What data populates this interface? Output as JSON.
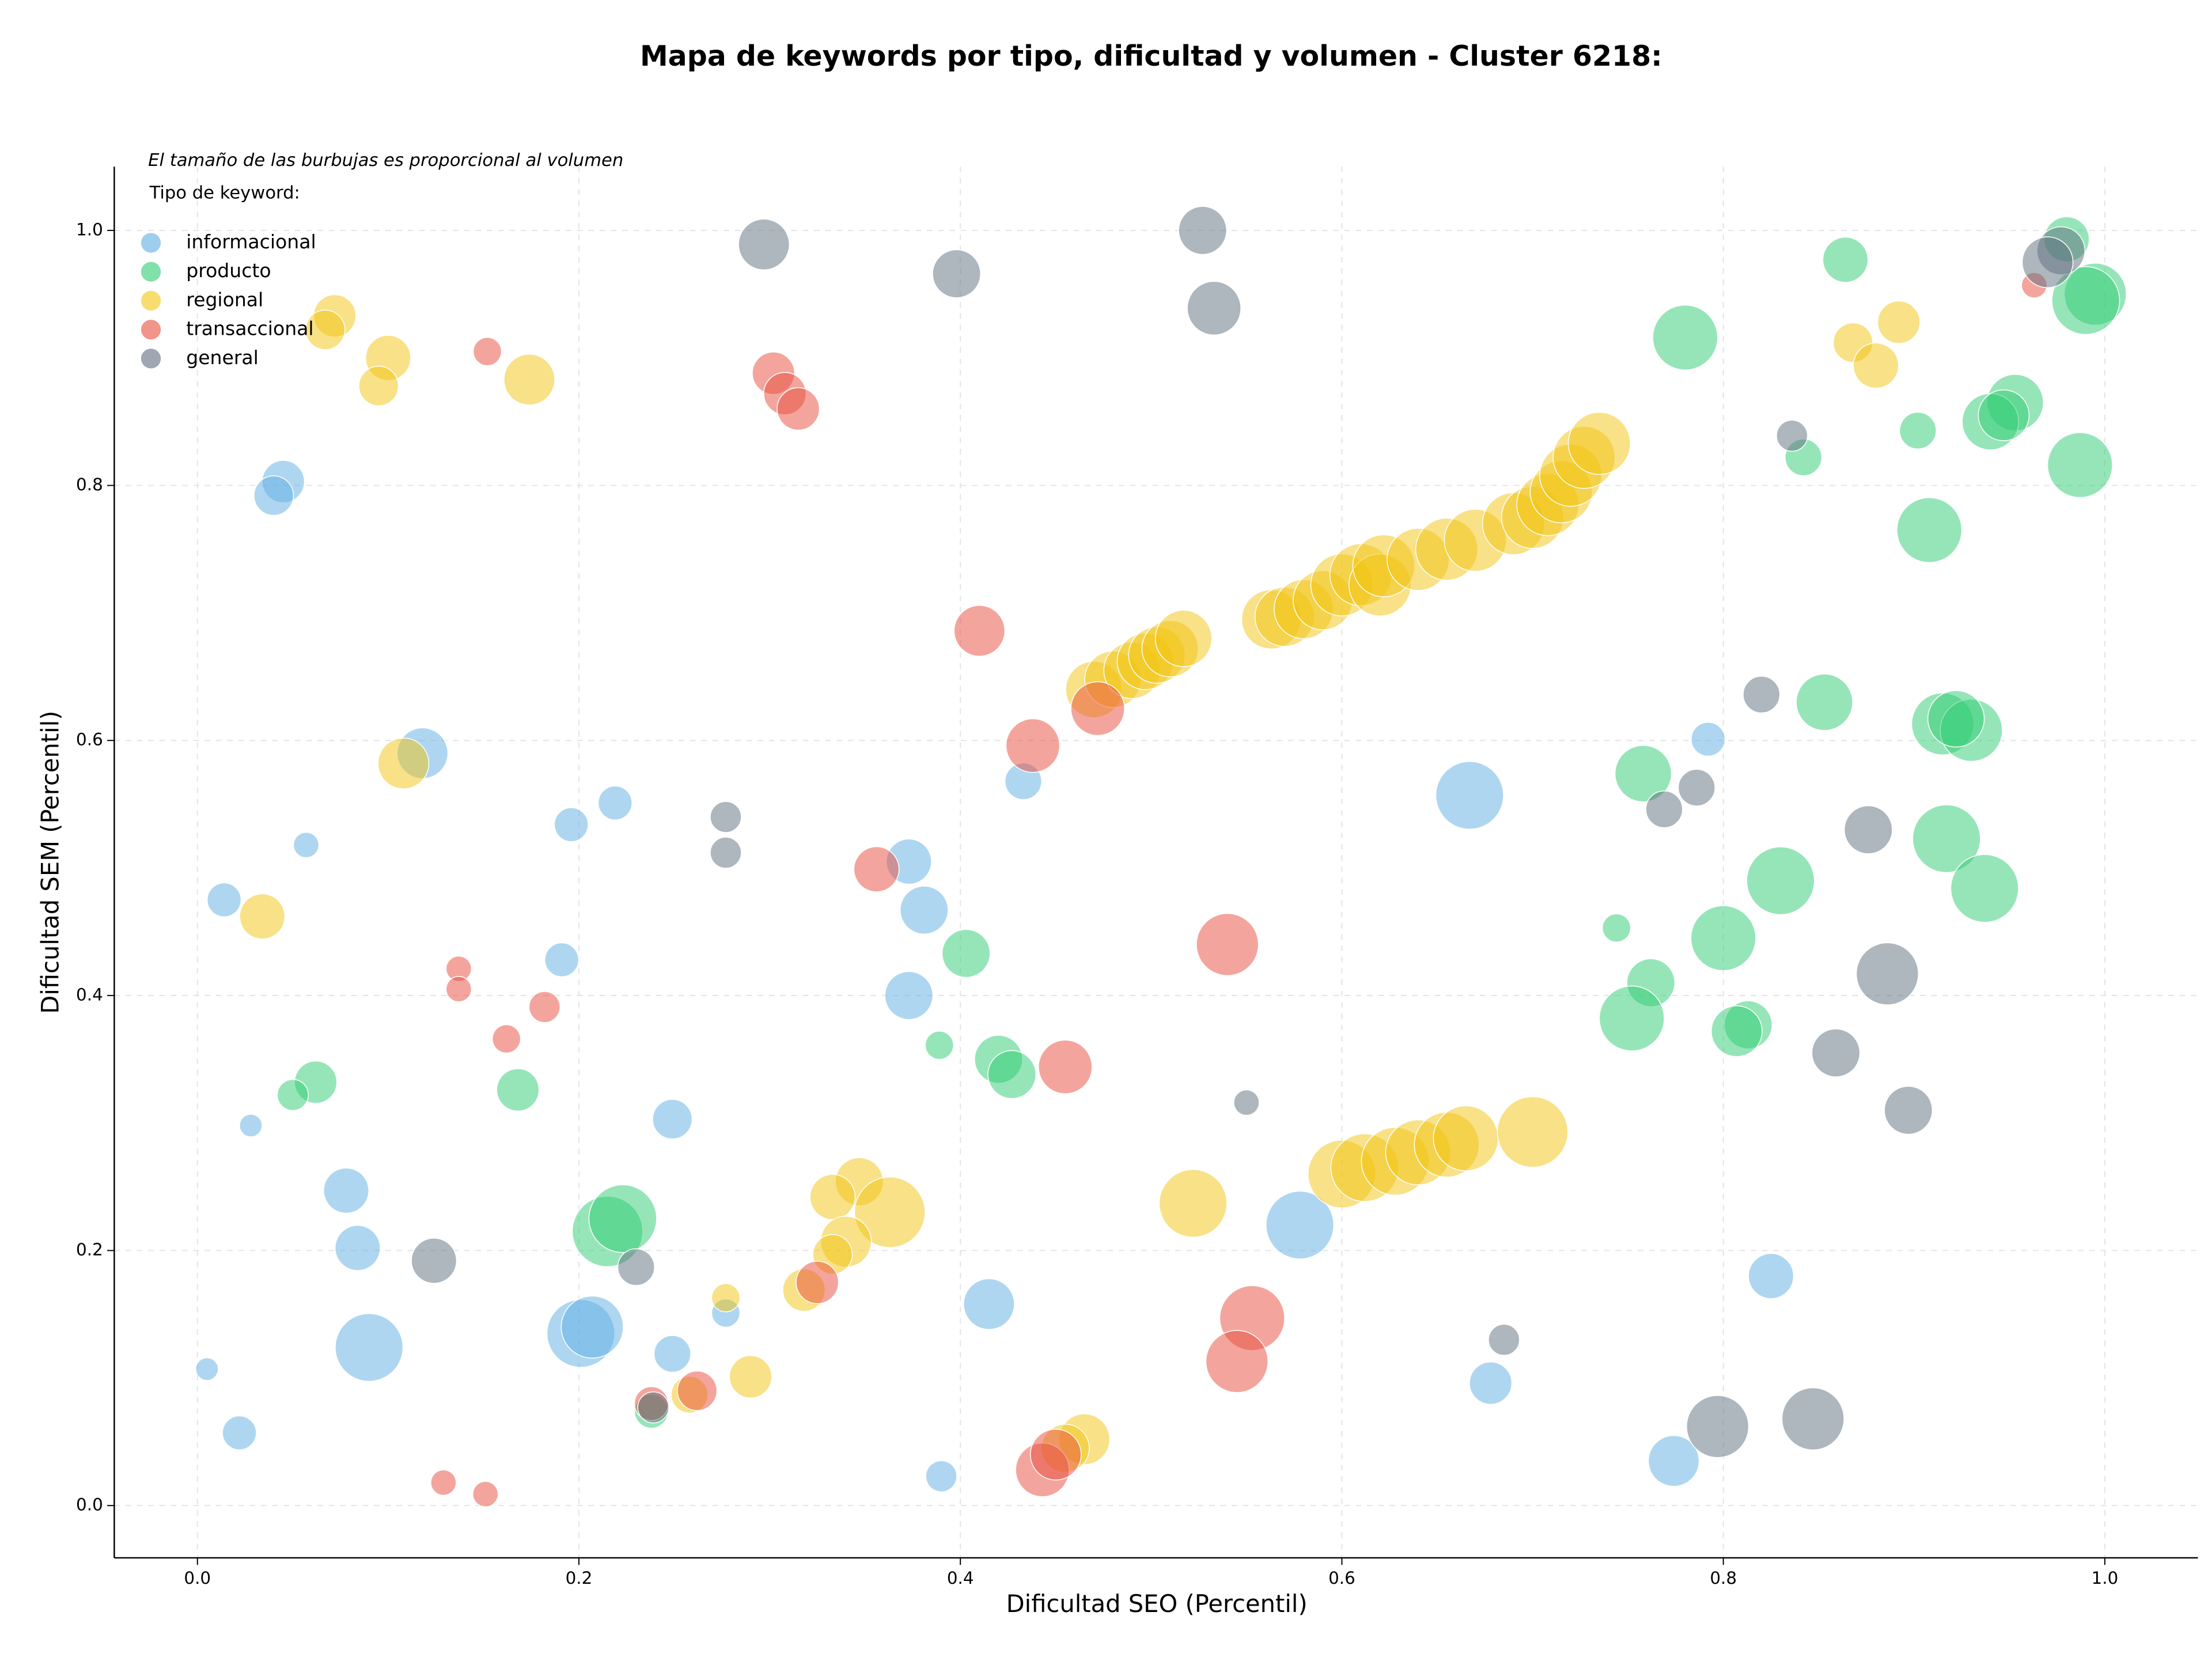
{
  "chart_data": {
    "type": "scatter",
    "title": "Mapa de keywords por tipo, dificultad y volumen - Cluster 6218:",
    "x_label": "Dificultad SEO (Percentil)",
    "y_label": "Dificultad SEM (Percentil)",
    "annotation": "El tamaño de las burbujas es proporcional al volumen",
    "legend_title": "Tipo de keyword:",
    "legend_position": "upper-left",
    "grid": true,
    "xlim": [
      -0.0436,
      1.0488
    ],
    "ylim": [
      -0.041,
      1.05
    ],
    "xticks": [
      {
        "value": 0,
        "label": "0.0"
      },
      0.2,
      0.4,
      0.6,
      0.8,
      {
        "value": 1,
        "label": "1.0"
      }
    ],
    "yticks": [
      {
        "value": 0,
        "label": "0.0"
      },
      0.2,
      0.4,
      0.6,
      0.8,
      {
        "value": 1,
        "label": "1.0"
      }
    ],
    "series": [
      {
        "name": "informacional",
        "color": "#5dade2",
        "x": [
          0.045,
          0.04,
          0.118,
          0.057,
          0.014,
          0.196,
          0.219,
          0.191,
          0.028,
          0.078,
          0.084,
          0.09,
          0.005,
          0.022,
          0.201,
          0.207,
          0.249,
          0.249,
          0.277,
          0.373,
          0.381,
          0.373,
          0.433,
          0.415,
          0.39,
          0.667,
          0.578,
          0.792,
          0.825,
          0.678,
          0.774
        ],
        "values": [
          0.803,
          0.792,
          0.59,
          0.518,
          0.475,
          0.534,
          0.551,
          0.428,
          0.298,
          0.247,
          0.202,
          0.124,
          0.107,
          0.057,
          0.135,
          0.14,
          0.303,
          0.119,
          0.151,
          0.505,
          0.467,
          0.4,
          0.568,
          0.158,
          0.023,
          0.557,
          0.22,
          0.601,
          0.18,
          0.096,
          0.035
        ],
        "sizes": [
          15,
          14,
          18,
          9,
          12,
          12,
          12,
          12,
          8,
          16,
          16,
          24,
          8,
          12,
          24,
          22,
          14,
          13,
          10,
          16,
          17,
          17,
          13,
          18,
          11,
          24,
          24,
          12,
          16,
          15,
          18
        ]
      },
      {
        "name": "producto",
        "color": "#2ecc71",
        "x": [
          0.864,
          0.98,
          0.995,
          0.99,
          0.78,
          0.953,
          0.94,
          0.947,
          0.902,
          0.842,
          0.987,
          0.908,
          0.853,
          0.758,
          0.915,
          0.93,
          0.922,
          0.917,
          0.83,
          0.937,
          0.744,
          0.8,
          0.762,
          0.752,
          0.813,
          0.807,
          0.403,
          0.389,
          0.42,
          0.427,
          0.062,
          0.05,
          0.168,
          0.215,
          0.223,
          0.238
        ],
        "values": [
          0.977,
          0.993,
          0.95,
          0.945,
          0.916,
          0.865,
          0.85,
          0.855,
          0.843,
          0.822,
          0.816,
          0.765,
          0.63,
          0.574,
          0.613,
          0.608,
          0.617,
          0.523,
          0.49,
          0.484,
          0.453,
          0.445,
          0.41,
          0.382,
          0.377,
          0.372,
          0.433,
          0.361,
          0.35,
          0.338,
          0.332,
          0.322,
          0.326,
          0.215,
          0.225,
          0.074
        ],
        "sizes": [
          16,
          16,
          22,
          24,
          23,
          20,
          20,
          18,
          13,
          13,
          23,
          23,
          20,
          20,
          22,
          22,
          20,
          24,
          24,
          24,
          10,
          23,
          17,
          23,
          17,
          18,
          17,
          10,
          17,
          17,
          15,
          11,
          15,
          25,
          24,
          12
        ]
      },
      {
        "name": "regional",
        "color": "#f1c40f",
        "x": [
          0.072,
          0.067,
          0.1,
          0.095,
          0.174,
          0.108,
          0.034,
          0.868,
          0.892,
          0.88,
          0.47,
          0.48,
          0.49,
          0.497,
          0.503,
          0.51,
          0.517,
          0.563,
          0.57,
          0.58,
          0.59,
          0.6,
          0.61,
          0.62,
          0.622,
          0.64,
          0.655,
          0.67,
          0.69,
          0.7,
          0.708,
          0.715,
          0.72,
          0.727,
          0.735,
          0.6,
          0.612,
          0.628,
          0.64,
          0.655,
          0.665,
          0.7,
          0.522,
          0.347,
          0.333,
          0.363,
          0.34,
          0.333,
          0.277,
          0.318,
          0.29,
          0.258,
          0.465,
          0.455
        ],
        "values": [
          0.933,
          0.922,
          0.9,
          0.878,
          0.883,
          0.582,
          0.462,
          0.912,
          0.928,
          0.894,
          0.64,
          0.648,
          0.655,
          0.662,
          0.667,
          0.672,
          0.68,
          0.695,
          0.697,
          0.703,
          0.71,
          0.722,
          0.73,
          0.722,
          0.737,
          0.742,
          0.75,
          0.757,
          0.77,
          0.775,
          0.785,
          0.795,
          0.808,
          0.822,
          0.833,
          0.26,
          0.265,
          0.27,
          0.277,
          0.283,
          0.288,
          0.293,
          0.237,
          0.254,
          0.242,
          0.23,
          0.207,
          0.197,
          0.163,
          0.169,
          0.101,
          0.087,
          0.052,
          0.045
        ],
        "sizes": [
          15,
          14,
          16,
          14,
          18,
          18,
          16,
          14,
          15,
          16,
          20,
          20,
          20,
          20,
          20,
          20,
          20,
          21,
          21,
          21,
          21,
          22,
          22,
          22,
          22,
          22,
          22,
          22,
          22,
          22,
          22,
          22,
          22,
          22,
          22,
          24,
          24,
          24,
          23,
          23,
          23,
          25,
          24,
          17,
          16,
          25,
          18,
          14,
          10,
          15,
          15,
          13,
          18,
          17
        ]
      },
      {
        "name": "transaccional",
        "color": "#e74c3c",
        "x": [
          0.152,
          0.302,
          0.308,
          0.315,
          0.41,
          0.438,
          0.472,
          0.356,
          0.137,
          0.137,
          0.182,
          0.162,
          0.54,
          0.455,
          0.325,
          0.553,
          0.545,
          0.262,
          0.238,
          0.443,
          0.45,
          0.129,
          0.151,
          0.963
        ],
        "values": [
          0.905,
          0.888,
          0.872,
          0.86,
          0.686,
          0.596,
          0.625,
          0.499,
          0.421,
          0.405,
          0.391,
          0.366,
          0.44,
          0.344,
          0.175,
          0.147,
          0.113,
          0.09,
          0.08,
          0.028,
          0.04,
          0.018,
          0.009,
          0.957
        ],
        "sizes": [
          10,
          15,
          15,
          15,
          18,
          19,
          19,
          16,
          9,
          9,
          11,
          10,
          22,
          19,
          15,
          23,
          22,
          14,
          12,
          19,
          18,
          9,
          9,
          9
        ]
      },
      {
        "name": "general",
        "color": "#5d6d7e",
        "x": [
          0.297,
          0.398,
          0.527,
          0.533,
          0.977,
          0.97,
          0.836,
          0.82,
          0.277,
          0.277,
          0.769,
          0.786,
          0.876,
          0.886,
          0.859,
          0.897,
          0.55,
          0.124,
          0.23,
          0.239,
          0.685,
          0.797,
          0.847
        ],
        "values": [
          0.989,
          0.966,
          1.0,
          0.939,
          0.984,
          0.975,
          0.839,
          0.636,
          0.54,
          0.512,
          0.546,
          0.563,
          0.53,
          0.417,
          0.355,
          0.31,
          0.316,
          0.192,
          0.187,
          0.077,
          0.13,
          0.062,
          0.068
        ],
        "sizes": [
          18,
          17,
          17,
          19,
          17,
          18,
          11,
          13,
          11,
          11,
          13,
          13,
          17,
          22,
          17,
          17,
          9,
          16,
          13,
          11,
          11,
          22,
          22
        ]
      }
    ]
  }
}
